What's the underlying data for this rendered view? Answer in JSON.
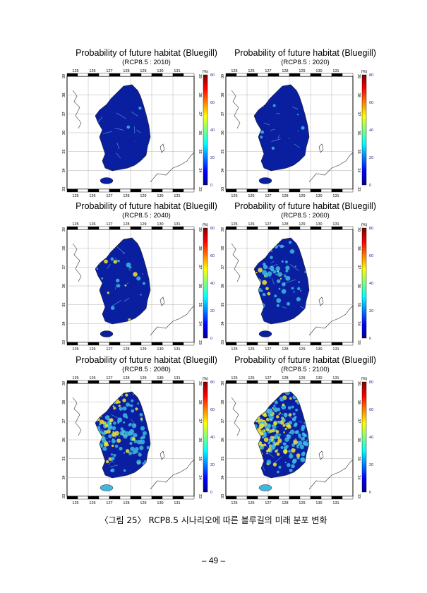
{
  "panels": [
    {
      "title": "Probability of future habitat (Bluegill)",
      "subtitle": "(RCP8.5 : 2010)",
      "level": 0.05
    },
    {
      "title": "Probability of future habitat (Bluegill)",
      "subtitle": "(RCP8.5 : 2020)",
      "level": 0.1
    },
    {
      "title": "Probability of future habitat (Bluegill)",
      "subtitle": "(RCP8.5 : 2040)",
      "level": 0.22
    },
    {
      "title": "Probability of future habitat (Bluegill)",
      "subtitle": "(RCP8.5 : 2060)",
      "level": 0.4
    },
    {
      "title": "Probability of future habitat (Bluegill)",
      "subtitle": "(RCP8.5 : 2080)",
      "level": 0.62
    },
    {
      "title": "Probability of future habitat (Bluegill)",
      "subtitle": "(RCP8.5 : 2100)",
      "level": 0.75
    }
  ],
  "axes": {
    "lon_ticks": [
      "125",
      "126",
      "127",
      "128",
      "129",
      "130",
      "131"
    ],
    "lat_ticks": [
      "33",
      "34",
      "35",
      "36",
      "37",
      "38",
      "39"
    ],
    "colorbar_unit": "(%)",
    "colorbar_ticks": [
      "0",
      "20",
      "40",
      "60",
      "80"
    ]
  },
  "colors": {
    "low": "#0a1fa0",
    "mid": "#3db8e0",
    "high": "#f3e52a",
    "colorbar": [
      "#00008f",
      "#0000ff",
      "#0080ff",
      "#00ffff",
      "#80ff80",
      "#ffff00",
      "#ff8000",
      "#ff0000",
      "#800000"
    ]
  },
  "caption": "〈그림 25〉 RCP8.5 시나리오에 따른 블루길의 미래 분포 변화",
  "page_number": "– 49 –"
}
